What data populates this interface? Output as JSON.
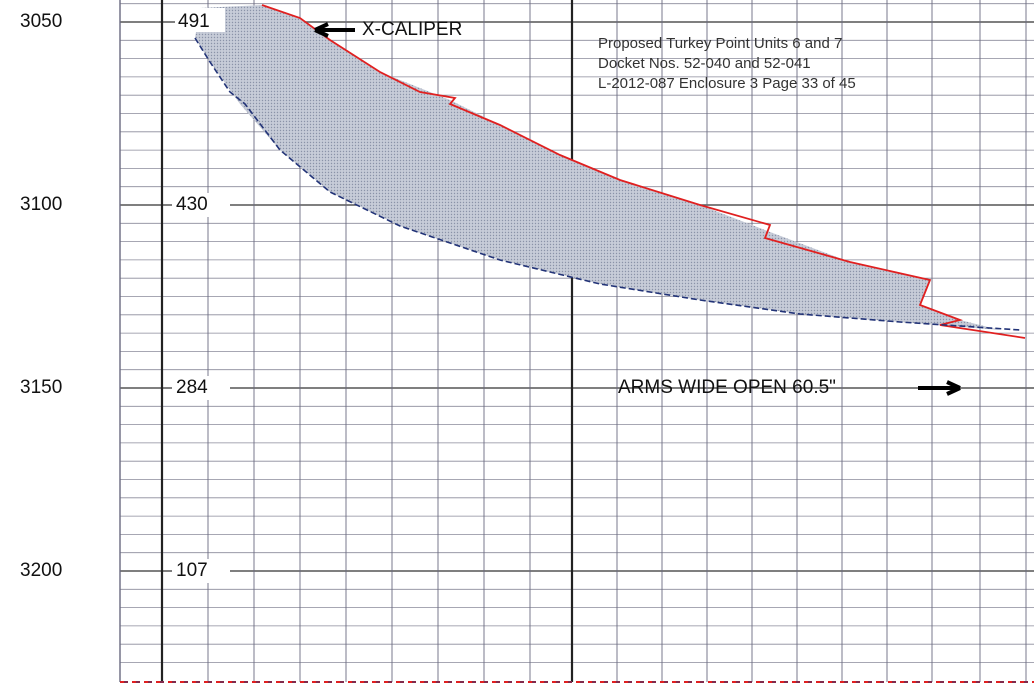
{
  "depth_labels": [
    3050,
    3100,
    3150,
    3200
  ],
  "track_labels": [
    491,
    430,
    284,
    107
  ],
  "annotations": {
    "caliper": "X-CALIPER",
    "arms": "ARMS WIDE OPEN 60.5\""
  },
  "header": {
    "lines": [
      "Proposed Turkey Point Units 6 and 7",
      "Docket Nos. 52-040 and 52-041",
      "L-2012-087 Enclosure 3 Page 33 of 45"
    ]
  }
}
